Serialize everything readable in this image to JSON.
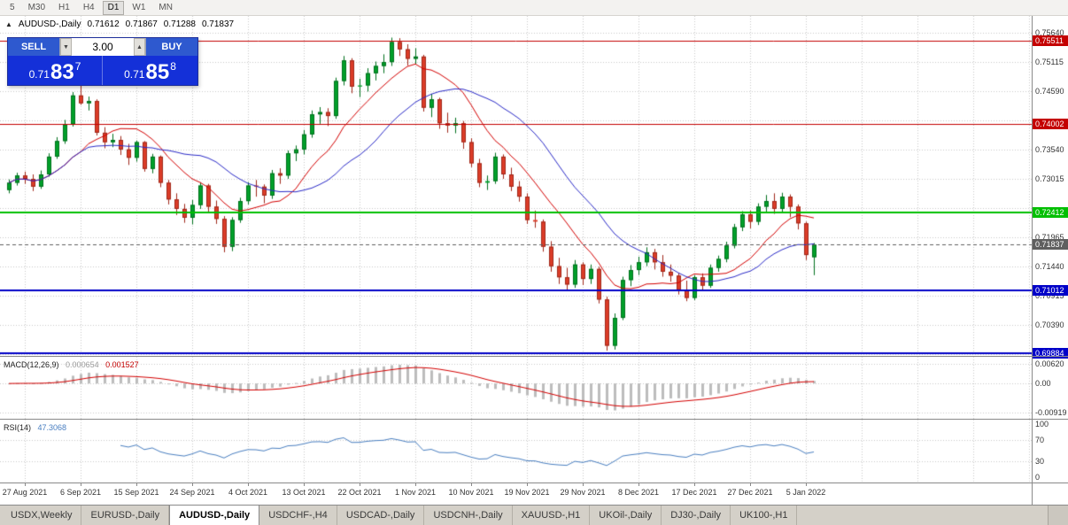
{
  "app": {
    "toolbar": {
      "periods": [
        "5",
        "M30",
        "H1",
        "H4",
        "D1",
        "W1",
        "MN"
      ],
      "active_period": "D1"
    },
    "tabs": {
      "items": [
        "USDX,Weekly",
        "EURUSD-,Daily",
        "AUDUSD-,Daily",
        "USDCHF-,H4",
        "USDCAD-,Daily",
        "USDCNH-,Daily",
        "XAUUSD-,H1",
        "UKOil-,Daily",
        "DJ30-,Daily",
        "UK100-,H1"
      ],
      "active_index": 2
    }
  },
  "icons": {
    "collapse": "▲",
    "volume_down": "▼",
    "volume_up": "▲"
  },
  "chart_header": {
    "symbol": "AUDUSD-,Daily",
    "open": "0.71612",
    "high": "0.71867",
    "low": "0.71288",
    "close": "0.71837"
  },
  "trade_panel": {
    "sell_label": "SELL",
    "buy_label": "BUY",
    "volume": "3.00",
    "sell_price": {
      "prefix": "0.71",
      "big": "83",
      "sup": "7"
    },
    "buy_price": {
      "prefix": "0.71",
      "big": "85",
      "sup": "8"
    }
  },
  "chart_data": {
    "type": "candlestick",
    "title": "AUDUSD-,Daily",
    "price_range": {
      "top": 0.7595,
      "bottom": 0.698362
    },
    "grid_prices": [
      0.7564,
      0.75115,
      0.7459,
      0.74065,
      0.7354,
      0.73015,
      0.7249,
      0.71965,
      0.7144,
      0.70915,
      0.7039,
      0.69865
    ],
    "levels": [
      {
        "price": 0.75511,
        "label": "0.75511",
        "color": "#c40000",
        "width": 1
      },
      {
        "price": 0.74002,
        "label": "0.74002",
        "color": "#c40000",
        "width": 1
      },
      {
        "price": 0.72412,
        "label": "0.72412",
        "color": "#00bf00",
        "width": 2
      },
      {
        "price": 0.71012,
        "label": "0.71012",
        "color": "#0000c8",
        "width": 2
      },
      {
        "price": 0.69884,
        "label": "0.69884",
        "color": "#0000c8",
        "width": 2
      }
    ],
    "current_price": {
      "price": 0.71837,
      "label": "0.71837",
      "color": "#5f5f5f"
    },
    "x_labels": [
      {
        "i": 2,
        "text": "27 Aug 2021"
      },
      {
        "i": 9,
        "text": "6 Sep 2021"
      },
      {
        "i": 16,
        "text": "15 Sep 2021"
      },
      {
        "i": 23,
        "text": "24 Sep 2021"
      },
      {
        "i": 30,
        "text": "4 Oct 2021"
      },
      {
        "i": 37,
        "text": "13 Oct 2021"
      },
      {
        "i": 44,
        "text": "22 Oct 2021"
      },
      {
        "i": 51,
        "text": "1 Nov 2021"
      },
      {
        "i": 58,
        "text": "10 Nov 2021"
      },
      {
        "i": 65,
        "text": "19 Nov 2021"
      },
      {
        "i": 72,
        "text": "29 Nov 2021"
      },
      {
        "i": 79,
        "text": "8 Dec 2021"
      },
      {
        "i": 86,
        "text": "17 Dec 2021"
      },
      {
        "i": 93,
        "text": "27 Dec 2021"
      },
      {
        "i": 100,
        "text": "5 Jan 2022"
      }
    ],
    "moving_averages": [
      {
        "period": 10,
        "color": "#d40000"
      },
      {
        "period": 20,
        "color": "#2a2ac8"
      }
    ],
    "colors": {
      "up": "#00a02a",
      "up_border": "#00701d",
      "down": "#dc3c28",
      "down_border": "#a0281a",
      "grid": "#c9c9c9"
    },
    "candles": [
      [
        0.7282,
        0.7301,
        0.7276,
        0.7295
      ],
      [
        0.7295,
        0.7313,
        0.729,
        0.7308
      ],
      [
        0.7308,
        0.7315,
        0.7293,
        0.7302
      ],
      [
        0.7302,
        0.731,
        0.728,
        0.7288
      ],
      [
        0.7288,
        0.7317,
        0.7284,
        0.731
      ],
      [
        0.731,
        0.7348,
        0.7306,
        0.7342
      ],
      [
        0.7342,
        0.7377,
        0.7338,
        0.737
      ],
      [
        0.737,
        0.7408,
        0.7365,
        0.74
      ],
      [
        0.74,
        0.7458,
        0.7396,
        0.7452
      ],
      [
        0.7452,
        0.7477,
        0.7435,
        0.7438
      ],
      [
        0.7438,
        0.745,
        0.7425,
        0.7442
      ],
      [
        0.7442,
        0.7445,
        0.738,
        0.7385
      ],
      [
        0.7385,
        0.7395,
        0.7357,
        0.7368
      ],
      [
        0.7368,
        0.7383,
        0.7359,
        0.7372
      ],
      [
        0.7372,
        0.7379,
        0.7345,
        0.7355
      ],
      [
        0.7355,
        0.7365,
        0.7327,
        0.734
      ],
      [
        0.734,
        0.7371,
        0.7333,
        0.7368
      ],
      [
        0.7368,
        0.737,
        0.7315,
        0.732
      ],
      [
        0.732,
        0.7347,
        0.7312,
        0.7342
      ],
      [
        0.7342,
        0.7344,
        0.7287,
        0.7295
      ],
      [
        0.7295,
        0.73,
        0.7256,
        0.7265
      ],
      [
        0.7265,
        0.7276,
        0.7237,
        0.7248
      ],
      [
        0.7248,
        0.7257,
        0.7223,
        0.7232
      ],
      [
        0.7232,
        0.7264,
        0.722,
        0.7255
      ],
      [
        0.7255,
        0.7296,
        0.7248,
        0.729
      ],
      [
        0.729,
        0.7293,
        0.7243,
        0.7252
      ],
      [
        0.7252,
        0.7263,
        0.7221,
        0.723
      ],
      [
        0.723,
        0.7235,
        0.717,
        0.718
      ],
      [
        0.718,
        0.7233,
        0.7172,
        0.7228
      ],
      [
        0.7228,
        0.7268,
        0.7223,
        0.7262
      ],
      [
        0.7262,
        0.7296,
        0.7256,
        0.729
      ],
      [
        0.729,
        0.73,
        0.727,
        0.7288
      ],
      [
        0.7288,
        0.7292,
        0.7258,
        0.7272
      ],
      [
        0.7272,
        0.7318,
        0.7266,
        0.7312
      ],
      [
        0.7312,
        0.7321,
        0.7293,
        0.7308
      ],
      [
        0.7308,
        0.7353,
        0.7302,
        0.7348
      ],
      [
        0.7348,
        0.7362,
        0.7334,
        0.7355
      ],
      [
        0.7355,
        0.739,
        0.7346,
        0.7382
      ],
      [
        0.7382,
        0.7425,
        0.7376,
        0.7418
      ],
      [
        0.7418,
        0.7431,
        0.7401,
        0.7422
      ],
      [
        0.7422,
        0.7429,
        0.7397,
        0.7415
      ],
      [
        0.7415,
        0.7484,
        0.741,
        0.7478
      ],
      [
        0.7478,
        0.7523,
        0.747,
        0.7515
      ],
      [
        0.7515,
        0.7519,
        0.7456,
        0.7468
      ],
      [
        0.7468,
        0.7482,
        0.7449,
        0.747
      ],
      [
        0.747,
        0.7501,
        0.7459,
        0.7492
      ],
      [
        0.7492,
        0.7513,
        0.7479,
        0.7505
      ],
      [
        0.7505,
        0.7526,
        0.7492,
        0.7512
      ],
      [
        0.7512,
        0.7556,
        0.7505,
        0.7548
      ],
      [
        0.7548,
        0.7555,
        0.7523,
        0.7535
      ],
      [
        0.7535,
        0.7544,
        0.7506,
        0.7518
      ],
      [
        0.7518,
        0.7537,
        0.7509,
        0.7522
      ],
      [
        0.7522,
        0.7525,
        0.7423,
        0.743
      ],
      [
        0.743,
        0.7455,
        0.7413,
        0.7445
      ],
      [
        0.7445,
        0.7448,
        0.7392,
        0.7402
      ],
      [
        0.7402,
        0.7421,
        0.7385,
        0.7398
      ],
      [
        0.7398,
        0.7412,
        0.7384,
        0.7402
      ],
      [
        0.7402,
        0.7406,
        0.7356,
        0.7368
      ],
      [
        0.7368,
        0.7375,
        0.7323,
        0.733
      ],
      [
        0.733,
        0.7338,
        0.7287,
        0.7295
      ],
      [
        0.7295,
        0.7308,
        0.7282,
        0.7298
      ],
      [
        0.7298,
        0.7349,
        0.7293,
        0.7342
      ],
      [
        0.7342,
        0.7346,
        0.7302,
        0.731
      ],
      [
        0.731,
        0.7322,
        0.728,
        0.7288
      ],
      [
        0.7288,
        0.7298,
        0.7261,
        0.727
      ],
      [
        0.727,
        0.7276,
        0.7221,
        0.7228
      ],
      [
        0.7228,
        0.7245,
        0.7214,
        0.7225
      ],
      [
        0.7225,
        0.7229,
        0.7171,
        0.718
      ],
      [
        0.718,
        0.719,
        0.7135,
        0.7145
      ],
      [
        0.7145,
        0.716,
        0.7113,
        0.7125
      ],
      [
        0.7125,
        0.7142,
        0.7102,
        0.7112
      ],
      [
        0.7112,
        0.7156,
        0.7106,
        0.7148
      ],
      [
        0.7148,
        0.7152,
        0.7111,
        0.7122
      ],
      [
        0.7122,
        0.7148,
        0.7113,
        0.714
      ],
      [
        0.714,
        0.7144,
        0.7078,
        0.7085
      ],
      [
        0.7085,
        0.709,
        0.6993,
        0.7002
      ],
      [
        0.7002,
        0.706,
        0.6995,
        0.7052
      ],
      [
        0.7052,
        0.7126,
        0.7048,
        0.712
      ],
      [
        0.712,
        0.7147,
        0.7109,
        0.7138
      ],
      [
        0.7138,
        0.7162,
        0.7129,
        0.7152
      ],
      [
        0.7152,
        0.7179,
        0.7145,
        0.717
      ],
      [
        0.717,
        0.7176,
        0.7139,
        0.7152
      ],
      [
        0.7152,
        0.7165,
        0.7126,
        0.7135
      ],
      [
        0.7135,
        0.7148,
        0.7117,
        0.7128
      ],
      [
        0.7128,
        0.7133,
        0.7094,
        0.7102
      ],
      [
        0.7102,
        0.7119,
        0.7082,
        0.7088
      ],
      [
        0.7088,
        0.7129,
        0.7084,
        0.7125
      ],
      [
        0.7125,
        0.7132,
        0.7101,
        0.711
      ],
      [
        0.711,
        0.7148,
        0.7106,
        0.7142
      ],
      [
        0.7142,
        0.7164,
        0.7135,
        0.7158
      ],
      [
        0.7158,
        0.7189,
        0.7152,
        0.7182
      ],
      [
        0.7182,
        0.7221,
        0.7177,
        0.7215
      ],
      [
        0.7215,
        0.7244,
        0.7208,
        0.7238
      ],
      [
        0.7238,
        0.7245,
        0.7213,
        0.7225
      ],
      [
        0.7225,
        0.7258,
        0.7219,
        0.7252
      ],
      [
        0.7252,
        0.7273,
        0.7243,
        0.7262
      ],
      [
        0.7262,
        0.7276,
        0.7239,
        0.7248
      ],
      [
        0.7248,
        0.7277,
        0.7241,
        0.727
      ],
      [
        0.727,
        0.7274,
        0.7233,
        0.7252
      ],
      [
        0.7252,
        0.7256,
        0.7211,
        0.7222
      ],
      [
        0.7222,
        0.7225,
        0.7156,
        0.7165
      ],
      [
        0.71612,
        0.71867,
        0.71288,
        0.71837
      ]
    ],
    "macd": {
      "label": "MACD(12,26,9)",
      "value_main": "0.000654",
      "value_signal": "0.001527",
      "hist_color": "#bdbdbd",
      "signal_color": "#d40000",
      "axis": {
        "top_value": 0.0062,
        "top_text": "0.00620",
        "zero_text": "0.00",
        "bottom_value": -0.00919,
        "bottom_text": "-0.00919"
      }
    },
    "rsi": {
      "label": "RSI(14)",
      "value": "47.3068",
      "color": "#4a7fc1",
      "levels": [
        70,
        30
      ],
      "axis_labels": [
        100,
        70,
        30,
        0
      ],
      "range": [
        0,
        100
      ]
    }
  }
}
